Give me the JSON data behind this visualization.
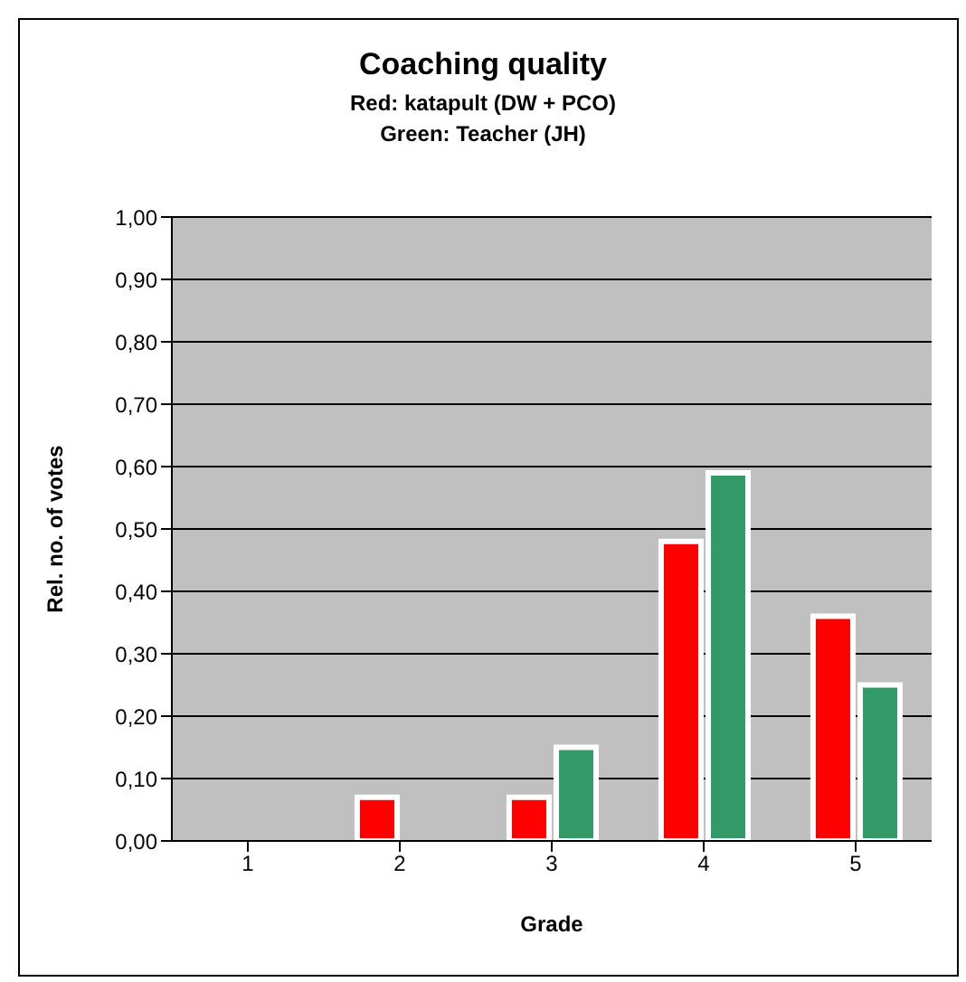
{
  "chart_data": {
    "type": "bar",
    "title": "Coaching quality",
    "subtitle": "Red: katapult (DW + PCO)\nGreen: Teacher (JH)",
    "xlabel": "Grade",
    "ylabel": "Rel. no. of votes",
    "categories": [
      "1",
      "2",
      "3",
      "4",
      "5"
    ],
    "series": [
      {
        "color": "#ff0000",
        "values": [
          0,
          0.07,
          0.07,
          0.48,
          0.36
        ]
      },
      {
        "color": "#339966",
        "values": [
          0,
          0,
          0.15,
          0.59,
          0.25
        ]
      }
    ],
    "ylim": [
      0,
      1
    ],
    "yticks": [
      {
        "value": 0,
        "label": "0,00"
      },
      {
        "value": 0.1,
        "label": "0,10"
      },
      {
        "value": 0.2,
        "label": "0,20"
      },
      {
        "value": 0.3,
        "label": "0,30"
      },
      {
        "value": 0.4,
        "label": "0,40"
      },
      {
        "value": 0.5,
        "label": "0,50"
      },
      {
        "value": 0.6,
        "label": "0,60"
      },
      {
        "value": 0.7,
        "label": "0,70"
      },
      {
        "value": 0.8,
        "label": "0,80"
      },
      {
        "value": 0.9,
        "label": "0,90"
      },
      {
        "value": 1,
        "label": "1,00"
      }
    ],
    "grid": "y",
    "legend": false
  }
}
